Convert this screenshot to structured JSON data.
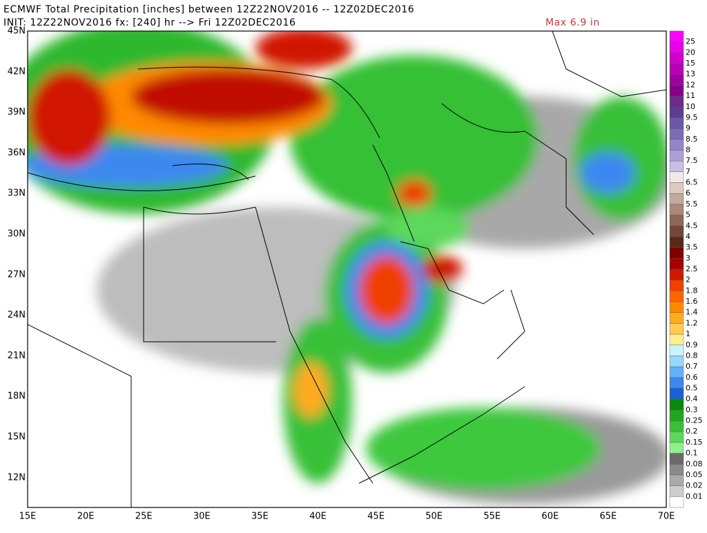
{
  "header": {
    "line1": "ECMWF Total Precipitation [inches] between 12Z22NOV2016 -- 12Z02DEC2016",
    "line2": "INIT: 12Z22NOV2016 fx: [240] hr --> Fri 12Z02DEC2016",
    "max_label": "Max 6.9 in"
  },
  "lat_labels": [
    "45N",
    "42N",
    "39N",
    "36N",
    "33N",
    "30N",
    "27N",
    "24N",
    "21N",
    "18N",
    "15N",
    "12N"
  ],
  "lon_labels": [
    "15E",
    "20E",
    "25E",
    "30E",
    "35E",
    "40E",
    "45E",
    "50E",
    "55E",
    "60E",
    "65E",
    "70E"
  ],
  "colorbar": {
    "labels": [
      "25",
      "20",
      "15",
      "13",
      "12",
      "11",
      "10",
      "9.5",
      "9",
      "8.5",
      "8",
      "7.5",
      "7",
      "6.5",
      "6",
      "5.5",
      "5",
      "4.5",
      "4",
      "3.5",
      "3",
      "2.5",
      "2",
      "1.8",
      "1.6",
      "1.4",
      "1.2",
      "1",
      "0.9",
      "0.8",
      "0.7",
      "0.6",
      "0.5",
      "0.4",
      "0.3",
      "0.25",
      "0.2",
      "0.15",
      "0.1",
      "0.08",
      "0.05",
      "0.02",
      "0.01"
    ],
    "colors": [
      "#ff00ff",
      "#e800e8",
      "#d000d0",
      "#b800b8",
      "#a000a0",
      "#880088",
      "#702a8c",
      "#5c3c94",
      "#6a58a8",
      "#7c6cb8",
      "#9484c8",
      "#aca0d8",
      "#c8bee8",
      "#f2eaea",
      "#dccac2",
      "#c4a89c",
      "#ac8878",
      "#906656",
      "#744636",
      "#5c2818",
      "#7e0000",
      "#a80000",
      "#d01800",
      "#f04000",
      "#ff6400",
      "#ff8a00",
      "#ffaa20",
      "#ffcc50",
      "#ffee90",
      "#c8f4ff",
      "#98d8ff",
      "#64b0ff",
      "#3c88f0",
      "#1c60d8",
      "#0a8a0a",
      "#1ea81e",
      "#38c038",
      "#5cd85c",
      "#8ef08e",
      "#6a6a6a",
      "#8a8a8a",
      "#aaaaaa",
      "#cccccc",
      "#ffffff"
    ]
  }
}
